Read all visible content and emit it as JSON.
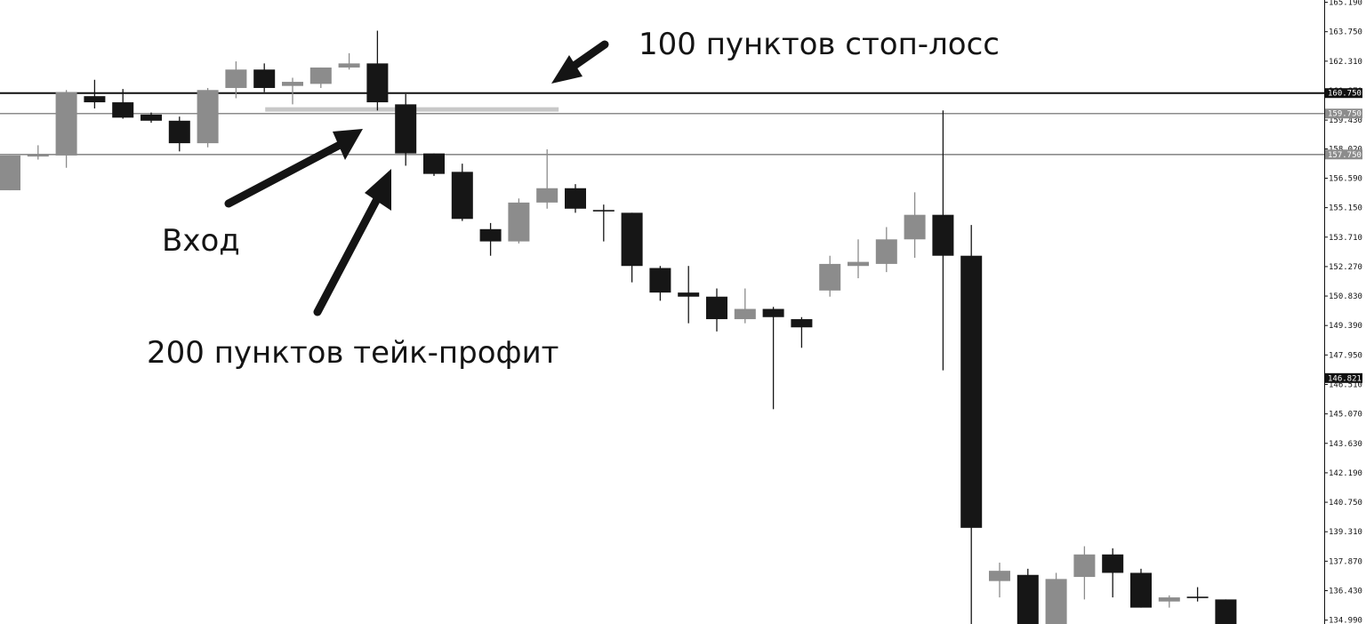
{
  "chart_data": {
    "type": "candlestick",
    "colors": {
      "bull": "#8c8c8c",
      "bear": "#161616",
      "doji": "#161616",
      "axis": "#111111",
      "entry_zone": "#c8c8c8"
    },
    "y_axis": {
      "position": "right",
      "ylim": [
        134.8,
        165.3
      ],
      "tick_labels": [
        "165.190",
        "163.750",
        "162.310",
        "160.870",
        "159.430",
        "158.020",
        "156.590",
        "155.150",
        "153.710",
        "152.270",
        "150.830",
        "149.390",
        "147.950",
        "146.510",
        "145.070",
        "143.630",
        "142.190",
        "140.750",
        "139.310",
        "137.870",
        "136.430",
        "134.990"
      ]
    },
    "levels": [
      {
        "value": 160.75,
        "label": "160.750",
        "color": "#111111"
      },
      {
        "value": 159.75,
        "label": "159.750",
        "color": "#8c8c8c"
      },
      {
        "value": 157.75,
        "label": "157.750",
        "color": "#8c8c8c"
      }
    ],
    "current_price": {
      "value": 146.821,
      "label": "146.821",
      "color": "#111111"
    },
    "entry_zone": {
      "from_index": 9,
      "to_index": 19,
      "value": 159.95
    },
    "candles": [
      {
        "open": 156.0,
        "high": 157.7,
        "low": 156.0,
        "close": 157.7
      },
      {
        "open": 157.65,
        "high": 158.2,
        "low": 157.5,
        "close": 157.75
      },
      {
        "open": 157.7,
        "high": 160.9,
        "low": 157.1,
        "close": 160.8
      },
      {
        "open": 160.6,
        "high": 161.4,
        "low": 160.0,
        "close": 160.3
      },
      {
        "open": 160.3,
        "high": 160.95,
        "low": 159.5,
        "close": 159.55
      },
      {
        "open": 159.7,
        "high": 159.8,
        "low": 159.3,
        "close": 159.4
      },
      {
        "open": 159.4,
        "high": 159.6,
        "low": 157.9,
        "close": 158.3
      },
      {
        "open": 158.3,
        "high": 161.0,
        "low": 158.1,
        "close": 160.9
      },
      {
        "open": 161.0,
        "high": 162.3,
        "low": 160.5,
        "close": 161.9
      },
      {
        "open": 161.9,
        "high": 162.2,
        "low": 160.8,
        "close": 161.0
      },
      {
        "open": 161.1,
        "high": 161.5,
        "low": 160.2,
        "close": 161.3
      },
      {
        "open": 161.2,
        "high": 162.0,
        "low": 161.0,
        "close": 162.0
      },
      {
        "open": 162.0,
        "high": 162.7,
        "low": 161.9,
        "close": 162.2
      },
      {
        "open": 162.2,
        "high": 163.8,
        "low": 159.9,
        "close": 160.3
      },
      {
        "open": 160.2,
        "high": 160.7,
        "low": 157.2,
        "close": 157.8
      },
      {
        "open": 157.8,
        "high": 157.8,
        "low": 156.7,
        "close": 156.8
      },
      {
        "open": 156.9,
        "high": 157.3,
        "low": 154.5,
        "close": 154.6
      },
      {
        "open": 154.1,
        "high": 154.4,
        "low": 152.8,
        "close": 153.5
      },
      {
        "open": 153.5,
        "high": 155.6,
        "low": 153.4,
        "close": 155.4
      },
      {
        "open": 155.4,
        "high": 158.0,
        "low": 155.1,
        "close": 156.1
      },
      {
        "open": 156.1,
        "high": 156.3,
        "low": 154.9,
        "close": 155.1
      },
      {
        "open": 155.0,
        "high": 155.3,
        "low": 153.5,
        "close": 155.0
      },
      {
        "open": 154.9,
        "high": 154.9,
        "low": 151.5,
        "close": 152.3
      },
      {
        "open": 152.2,
        "high": 152.3,
        "low": 150.6,
        "close": 151.0
      },
      {
        "open": 151.0,
        "high": 152.3,
        "low": 149.5,
        "close": 150.8
      },
      {
        "open": 150.8,
        "high": 151.2,
        "low": 149.1,
        "close": 149.7
      },
      {
        "open": 149.7,
        "high": 151.2,
        "low": 149.5,
        "close": 150.2
      },
      {
        "open": 150.2,
        "high": 150.3,
        "low": 145.3,
        "close": 149.8
      },
      {
        "open": 149.7,
        "high": 149.8,
        "low": 148.3,
        "close": 149.3
      },
      {
        "open": 151.1,
        "high": 152.8,
        "low": 150.8,
        "close": 152.4
      },
      {
        "open": 152.3,
        "high": 153.6,
        "low": 151.7,
        "close": 152.5
      },
      {
        "open": 152.4,
        "high": 154.2,
        "low": 152.0,
        "close": 153.6
      },
      {
        "open": 153.6,
        "high": 155.9,
        "low": 152.7,
        "close": 154.8
      },
      {
        "open": 154.8,
        "high": 159.9,
        "low": 147.2,
        "close": 152.8
      },
      {
        "open": 152.8,
        "high": 154.3,
        "low": 134.8,
        "close": 139.5
      },
      {
        "open": 136.9,
        "high": 137.8,
        "low": 136.1,
        "close": 137.4
      },
      {
        "open": 137.2,
        "high": 137.5,
        "low": 134.8,
        "close": 134.8
      },
      {
        "open": 134.8,
        "high": 137.3,
        "low": 134.8,
        "close": 137.0
      },
      {
        "open": 137.1,
        "high": 138.6,
        "low": 136.0,
        "close": 138.2
      },
      {
        "open": 138.2,
        "high": 138.5,
        "low": 136.1,
        "close": 137.3
      },
      {
        "open": 137.3,
        "high": 137.5,
        "low": 135.6,
        "close": 135.6
      },
      {
        "open": 135.9,
        "high": 136.2,
        "low": 135.6,
        "close": 136.1
      },
      {
        "open": 136.1,
        "high": 136.6,
        "low": 135.9,
        "close": 136.1
      },
      {
        "open": 136.0,
        "high": 136.0,
        "low": 134.8,
        "close": 134.8
      }
    ]
  },
  "annotations": {
    "stop_loss": "100 пунктов стоп-лосс",
    "entry": "Вход",
    "take_profit": "200 пунктов тейк-профит"
  }
}
